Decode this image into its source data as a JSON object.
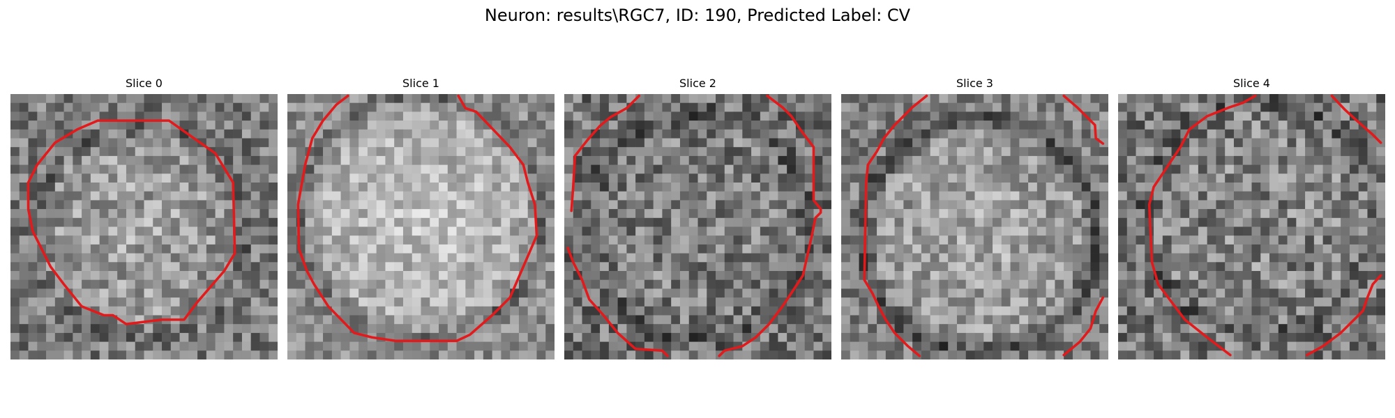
{
  "figure": {
    "title": "Neuron: results\\RGC7, ID: 190, Predicted Label: CV"
  },
  "panels": [
    {
      "title": "Slice 0",
      "variant": "centered-contour"
    },
    {
      "title": "Slice 1",
      "variant": "large-contour"
    },
    {
      "title": "Slice 2",
      "variant": "dark-noisy"
    },
    {
      "title": "Slice 3",
      "variant": "edge-contour"
    },
    {
      "title": "Slice 4",
      "variant": "noisy-edge-contour"
    }
  ],
  "colors": {
    "contour": "#e31a1c",
    "background": "#ffffff"
  }
}
